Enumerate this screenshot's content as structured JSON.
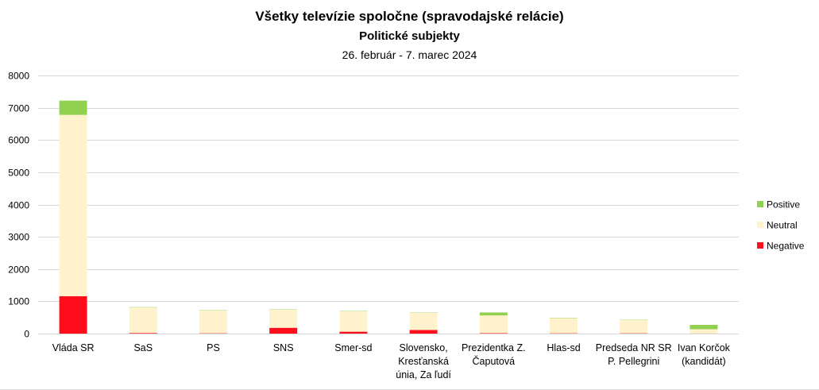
{
  "chart_data": {
    "type": "bar",
    "stacked": true,
    "title": "Všetky televízie spoločne (spravodajské relácie)",
    "subtitle": "Politické subjekty",
    "period": "26. február - 7. marec 2024",
    "categories": [
      [
        "Vláda SR"
      ],
      [
        "SaS"
      ],
      [
        "PS"
      ],
      [
        "SNS"
      ],
      [
        "Smer-sd"
      ],
      [
        "Slovensko,",
        "Kresťanská",
        "únia, Za ľudí"
      ],
      [
        "Prezidentka Z.",
        "Čaputová"
      ],
      [
        "Hlas-sd"
      ],
      [
        "Predseda NR SR",
        "P. Pellegrini"
      ],
      [
        "Ivan Korčok",
        "(kandidát)"
      ]
    ],
    "series": [
      {
        "name": "Negative",
        "color": "#ff0d1b",
        "values": [
          1160,
          20,
          10,
          180,
          60,
          110,
          15,
          10,
          10,
          5
        ]
      },
      {
        "name": "Neutral",
        "color": "#fff2cc",
        "values": [
          5620,
          790,
          710,
          560,
          630,
          530,
          550,
          470,
          410,
          130
        ]
      },
      {
        "name": "Positive",
        "color": "#92d050",
        "values": [
          440,
          10,
          10,
          10,
          10,
          10,
          90,
          10,
          10,
          135
        ]
      }
    ],
    "legend_order": [
      "Positive",
      "Neutral",
      "Negative"
    ],
    "legend_position": "right",
    "ylim": [
      0,
      8000
    ],
    "yticks": [
      0,
      1000,
      2000,
      3000,
      4000,
      5000,
      6000,
      7000,
      8000
    ],
    "grid": true,
    "grid_color": "#d9d9d9"
  }
}
